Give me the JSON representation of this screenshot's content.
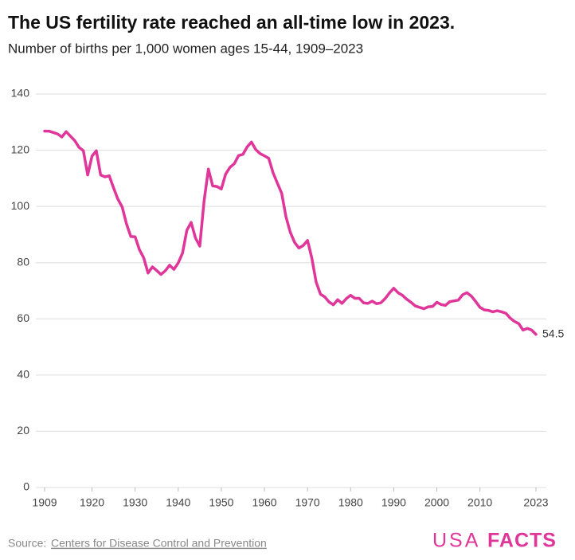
{
  "chart_data": {
    "type": "line",
    "title": "The US fertility rate reached an all-time low in 2023.",
    "subtitle": "Number of births per 1,000 women ages 15-44, 1909–2023",
    "x": [
      1909,
      1910,
      1911,
      1912,
      1913,
      1914,
      1915,
      1916,
      1917,
      1918,
      1919,
      1920,
      1921,
      1922,
      1923,
      1924,
      1925,
      1926,
      1927,
      1928,
      1929,
      1930,
      1931,
      1932,
      1933,
      1934,
      1935,
      1936,
      1937,
      1938,
      1939,
      1940,
      1941,
      1942,
      1943,
      1944,
      1945,
      1946,
      1947,
      1948,
      1949,
      1950,
      1951,
      1952,
      1953,
      1954,
      1955,
      1956,
      1957,
      1958,
      1959,
      1960,
      1961,
      1962,
      1963,
      1964,
      1965,
      1966,
      1967,
      1968,
      1969,
      1970,
      1971,
      1972,
      1973,
      1974,
      1975,
      1976,
      1977,
      1978,
      1979,
      1980,
      1981,
      1982,
      1983,
      1984,
      1985,
      1986,
      1987,
      1988,
      1989,
      1990,
      1991,
      1992,
      1993,
      1994,
      1995,
      1996,
      1997,
      1998,
      1999,
      2000,
      2001,
      2002,
      2003,
      2004,
      2005,
      2006,
      2007,
      2008,
      2009,
      2010,
      2011,
      2012,
      2013,
      2014,
      2015,
      2016,
      2017,
      2018,
      2019,
      2020,
      2021,
      2022,
      2023
    ],
    "values": [
      126.8,
      126.8,
      126.3,
      125.8,
      124.7,
      126.6,
      125.0,
      123.4,
      121.0,
      119.8,
      111.2,
      117.9,
      119.8,
      111.2,
      110.5,
      110.9,
      106.6,
      102.6,
      99.8,
      93.8,
      89.3,
      89.2,
      84.6,
      81.7,
      76.3,
      78.5,
      77.2,
      75.8,
      77.1,
      79.1,
      77.6,
      79.9,
      83.4,
      91.5,
      94.3,
      88.8,
      85.9,
      101.9,
      113.3,
      107.3,
      107.1,
      106.2,
      111.5,
      113.9,
      115.2,
      118.1,
      118.5,
      121.2,
      122.9,
      120.2,
      118.8,
      118.0,
      117.1,
      112.0,
      108.3,
      104.7,
      96.3,
      90.8,
      87.2,
      85.2,
      86.1,
      87.9,
      81.6,
      73.1,
      68.8,
      67.8,
      66.0,
      65.0,
      66.8,
      65.5,
      67.2,
      68.4,
      67.3,
      67.3,
      65.7,
      65.5,
      66.3,
      65.4,
      65.7,
      67.2,
      69.2,
      70.9,
      69.3,
      68.4,
      67.0,
      65.9,
      64.6,
      64.1,
      63.6,
      64.3,
      64.4,
      65.9,
      65.1,
      64.8,
      66.1,
      66.4,
      66.7,
      68.6,
      69.3,
      68.1,
      66.2,
      64.1,
      63.2,
      63.0,
      62.5,
      62.9,
      62.5,
      62.0,
      60.3,
      59.1,
      58.3,
      56.0,
      56.6,
      56.0,
      54.5
    ],
    "color": "#e0369a",
    "xlim": [
      1909,
      2023
    ],
    "xticks": [
      1909,
      1920,
      1930,
      1940,
      1950,
      1960,
      1970,
      1980,
      1990,
      2000,
      2010,
      2023
    ],
    "ylim": [
      0,
      140
    ],
    "yticks": [
      0,
      20,
      40,
      60,
      80,
      100,
      120,
      140
    ],
    "grid": true,
    "source_label": "Source:",
    "source": "Centers for Disease Control and Prevention",
    "logo": [
      "USA",
      "FACTS"
    ]
  }
}
